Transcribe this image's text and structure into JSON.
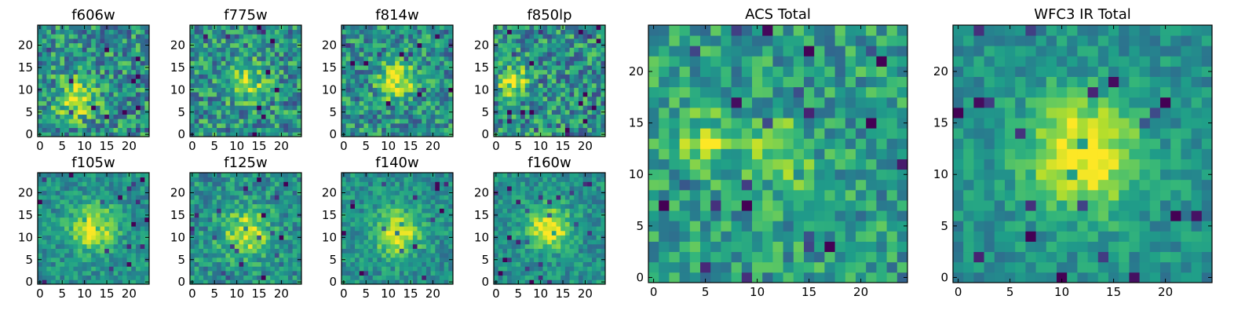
{
  "chart_data": [
    {
      "type": "heatmap",
      "title": "f606w",
      "colormap": "viridis",
      "grid_size": [
        25,
        25
      ],
      "blob": {
        "x": 8,
        "y": 8
      },
      "peak": 0.45,
      "sigma": 3.0,
      "noise": 0.28,
      "xticks": [
        0,
        5,
        10,
        15,
        20
      ],
      "yticks": [
        0,
        5,
        10,
        15,
        20
      ],
      "xlim": [
        -0.5,
        24.5
      ],
      "ylim": [
        -0.5,
        24.5
      ]
    },
    {
      "type": "heatmap",
      "title": "f775w",
      "colormap": "viridis",
      "grid_size": [
        25,
        25
      ],
      "blob": {
        "x": 12,
        "y": 12
      },
      "peak": 0.42,
      "sigma": 3.0,
      "noise": 0.28,
      "xticks": [
        0,
        5,
        10,
        15,
        20
      ],
      "yticks": [
        0,
        5,
        10,
        15,
        20
      ],
      "xlim": [
        -0.5,
        24.5
      ],
      "ylim": [
        -0.5,
        24.5
      ]
    },
    {
      "type": "heatmap",
      "title": "f814w",
      "colormap": "viridis",
      "grid_size": [
        25,
        25
      ],
      "blob": {
        "x": 12,
        "y": 12
      },
      "peak": 0.48,
      "sigma": 2.8,
      "noise": 0.26,
      "xticks": [
        0,
        5,
        10,
        15,
        20
      ],
      "yticks": [
        0,
        5,
        10,
        15,
        20
      ],
      "xlim": [
        -0.5,
        24.5
      ],
      "ylim": [
        -0.5,
        24.5
      ]
    },
    {
      "type": "heatmap",
      "title": "f850lp",
      "colormap": "viridis",
      "grid_size": [
        25,
        25
      ],
      "blob": {
        "x": 4,
        "y": 12
      },
      "peak": 0.5,
      "sigma": 2.2,
      "noise": 0.28,
      "xticks": [
        0,
        5,
        10,
        15,
        20
      ],
      "yticks": [
        0,
        5,
        10,
        15,
        20
      ],
      "xlim": [
        -0.5,
        24.5
      ],
      "ylim": [
        -0.5,
        24.5
      ]
    },
    {
      "type": "heatmap",
      "title": "f105w",
      "colormap": "viridis",
      "grid_size": [
        25,
        25
      ],
      "blob": {
        "x": 12,
        "y": 12
      },
      "peak": 0.5,
      "sigma": 3.5,
      "noise": 0.16,
      "xticks": [
        0,
        5,
        10,
        15,
        20
      ],
      "yticks": [
        0,
        5,
        10,
        15,
        20
      ],
      "xlim": [
        -0.5,
        24.5
      ],
      "ylim": [
        -0.5,
        24.5
      ]
    },
    {
      "type": "heatmap",
      "title": "f125w",
      "colormap": "viridis",
      "grid_size": [
        25,
        25
      ],
      "blob": {
        "x": 12,
        "y": 11
      },
      "peak": 0.45,
      "sigma": 3.5,
      "noise": 0.2,
      "xticks": [
        0,
        5,
        10,
        15,
        20
      ],
      "yticks": [
        0,
        5,
        10,
        15,
        20
      ],
      "xlim": [
        -0.5,
        24.5
      ],
      "ylim": [
        -0.5,
        24.5
      ]
    },
    {
      "type": "heatmap",
      "title": "f140w",
      "colormap": "viridis",
      "grid_size": [
        25,
        25
      ],
      "blob": {
        "x": 12,
        "y": 11
      },
      "peak": 0.5,
      "sigma": 3.5,
      "noise": 0.16,
      "xticks": [
        0,
        5,
        10,
        15,
        20
      ],
      "yticks": [
        0,
        5,
        10,
        15,
        20
      ],
      "xlim": [
        -0.5,
        24.5
      ],
      "ylim": [
        -0.5,
        24.5
      ]
    },
    {
      "type": "heatmap",
      "title": "f160w",
      "colormap": "viridis",
      "grid_size": [
        25,
        25
      ],
      "blob": {
        "x": 12,
        "y": 12
      },
      "peak": 0.55,
      "sigma": 3.2,
      "noise": 0.16,
      "xticks": [
        0,
        5,
        10,
        15,
        20
      ],
      "yticks": [
        0,
        5,
        10,
        15,
        20
      ],
      "xlim": [
        -0.5,
        24.5
      ],
      "ylim": [
        -0.5,
        24.5
      ]
    },
    {
      "type": "heatmap",
      "title": "ACS Total",
      "colormap": "viridis",
      "grid_size": [
        25,
        25
      ],
      "blobs": [
        {
          "x": 5,
          "y": 13,
          "peak": 0.3,
          "sigma": 2.0
        },
        {
          "x": 12,
          "y": 12,
          "peak": 0.32,
          "sigma": 2.2
        }
      ],
      "base": 0.55,
      "noise": 0.22,
      "xticks": [
        0,
        5,
        10,
        15,
        20
      ],
      "yticks": [
        0,
        5,
        10,
        15,
        20
      ],
      "xlim": [
        -0.5,
        24.5
      ],
      "ylim": [
        -0.5,
        24.5
      ]
    },
    {
      "type": "heatmap",
      "title": "WFC3 IR Total",
      "colormap": "viridis",
      "grid_size": [
        25,
        25
      ],
      "blob": {
        "x": 12,
        "y": 12
      },
      "peak": 0.5,
      "sigma": 4.0,
      "noise": 0.14,
      "xticks": [
        0,
        5,
        10,
        15,
        20
      ],
      "yticks": [
        0,
        5,
        10,
        15,
        20
      ],
      "xlim": [
        -0.5,
        24.5
      ],
      "ylim": [
        -0.5,
        24.5
      ]
    }
  ]
}
